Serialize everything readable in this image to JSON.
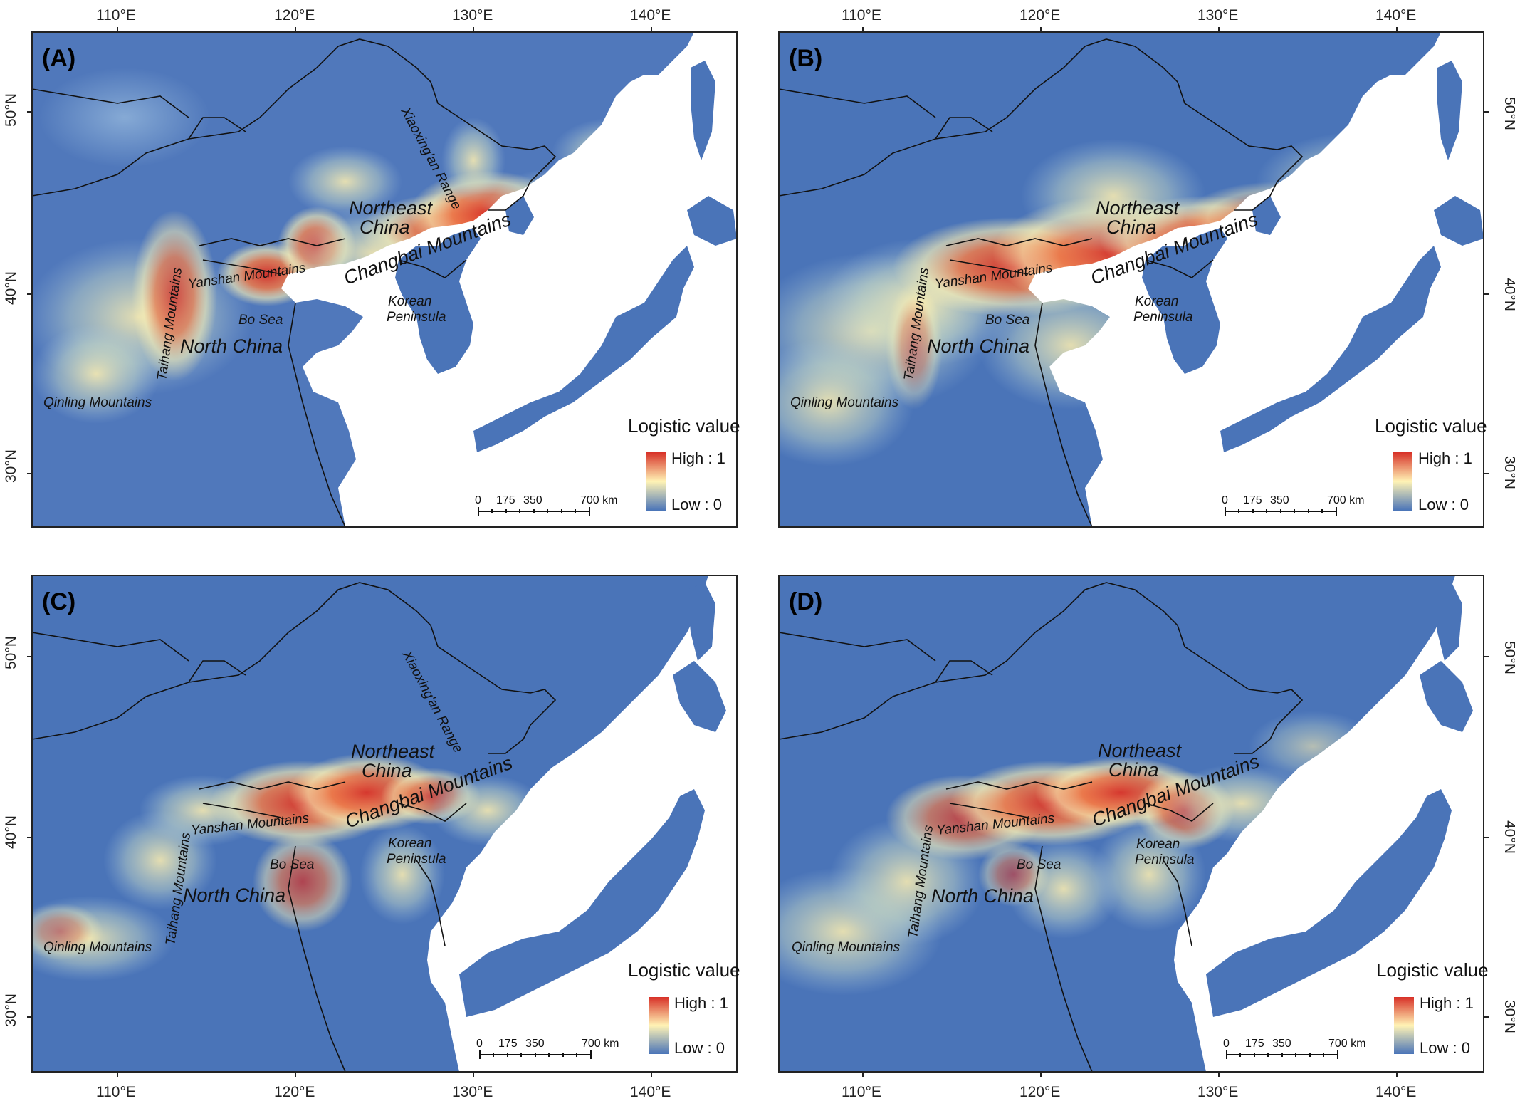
{
  "figure": {
    "x_ticks": [
      "110°E",
      "120°E",
      "130°E",
      "140°E"
    ],
    "y_ticks": [
      "50°N",
      "40°N",
      "30°N"
    ],
    "colors": {
      "low": "#4a74b8",
      "mid": "#fff3b5",
      "high": "#d73027",
      "sea": "#ffffff",
      "frame": "#222222"
    },
    "panels": [
      {
        "letter": "(A)",
        "labels": {
          "northeast": "Northeast",
          "china": "China",
          "changbai": "Changbai Mountains",
          "yanshan": "Yanshan Mountains",
          "taihang": "Taihang Mountains",
          "north_china": "North China",
          "bo_sea": "Bo Sea",
          "korean": "Korean",
          "peninsula": "Peninsula",
          "qinling": "Qinling Mountains",
          "xiaoxingan": "Xiaoxing'an Range"
        },
        "legend": {
          "title": "Logistic value",
          "high": "High : 1",
          "low": "Low : 0"
        },
        "scale": [
          "0",
          "175",
          "350",
          "700 km"
        ],
        "suitability": "current-narrow"
      },
      {
        "letter": "(B)",
        "labels": {
          "northeast": "Northeast",
          "china": "China",
          "changbai": "Changbai Mountains",
          "yanshan": "Yanshan Mountains",
          "taihang": "Taihang Mountains",
          "north_china": "North China",
          "bo_sea": "Bo Sea",
          "korean": "Korean",
          "peninsula": "Peninsula",
          "qinling": "Qinling Mountains"
        },
        "legend": {
          "title": "Logistic value",
          "high": "High : 1",
          "low": "Low : 0"
        },
        "scale": [
          "0",
          "175",
          "350",
          "700 km"
        ],
        "suitability": "broad"
      },
      {
        "letter": "(C)",
        "labels": {
          "northeast": "Northeast",
          "china": "China",
          "changbai": "Changbai Mountains",
          "yanshan": "Yanshan Mountains",
          "taihang": "Taihang Mountains",
          "north_china": "North China",
          "bo_sea": "Bo Sea",
          "korean": "Korean",
          "peninsula": "Peninsula",
          "qinling": "Qinling Mountains",
          "xiaoxingan": "Xiaoxing'an Range"
        },
        "legend": {
          "title": "Logistic value",
          "high": "High : 1",
          "low": "Low : 0"
        },
        "scale": [
          "0",
          "175",
          "350",
          "700 km"
        ],
        "suitability": "glacial-core"
      },
      {
        "letter": "(D)",
        "labels": {
          "northeast": "Northeast",
          "china": "China",
          "changbai": "Changbai Mountains",
          "yanshan": "Yanshan Mountains",
          "taihang": "Taihang Mountains",
          "north_china": "North China",
          "bo_sea": "Bo Sea",
          "korean": "Korean",
          "peninsula": "Peninsula",
          "qinling": "Qinling Mountains"
        },
        "legend": {
          "title": "Logistic value",
          "high": "High : 1",
          "low": "Low : 0"
        },
        "scale": [
          "0",
          "175",
          "350",
          "700 km"
        ],
        "suitability": "glacial-broad"
      }
    ]
  }
}
